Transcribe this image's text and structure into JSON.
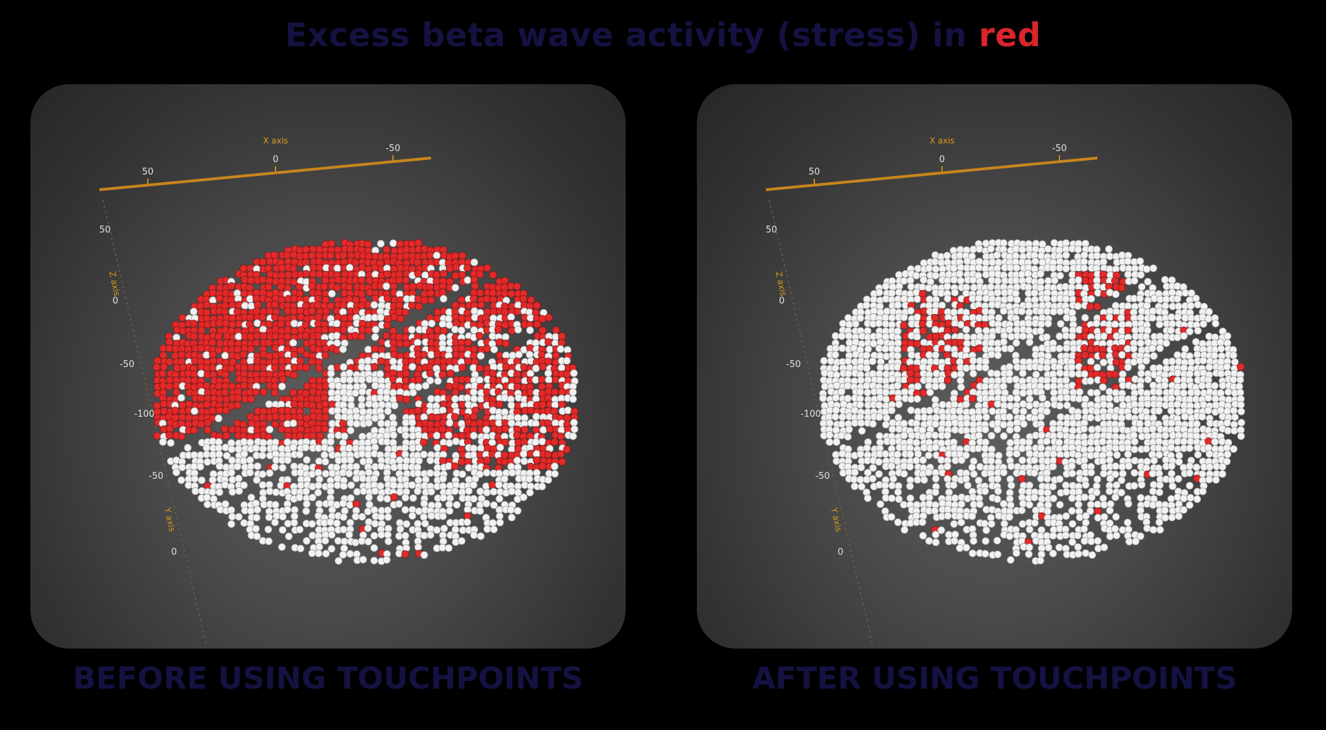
{
  "header": {
    "title_main": "Excess beta wave activity (stress) in ",
    "title_highlight": "red"
  },
  "colors": {
    "stress": "#e22a2a",
    "normal": "#f2f2f2",
    "title": "#141241",
    "axis": "#c8861c"
  },
  "chart_data": [
    {
      "type": "scatter",
      "caption": "BEFORE USING TOUCHPOINTS",
      "x_axis": {
        "label": "X axis",
        "ticks": [
          "50",
          "0",
          "-50"
        ]
      },
      "z_axis": {
        "label": "Z axis",
        "ticks": [
          "50",
          "0",
          "-50",
          "-100"
        ]
      },
      "y_axis": {
        "label": "Y axis",
        "ticks": [
          "-50",
          "0"
        ]
      },
      "series": [
        {
          "name": "red",
          "fraction_approx": 0.42
        },
        {
          "name": "white",
          "fraction_approx": 0.58
        }
      ],
      "stress_regions": "frontal-left, top crown and right-side band"
    },
    {
      "type": "scatter",
      "caption": "AFTER USING TOUCHPOINTS",
      "x_axis": {
        "label": "X axis",
        "ticks": [
          "50",
          "0",
          "-50"
        ]
      },
      "z_axis": {
        "label": "Z axis",
        "ticks": [
          "50",
          "0",
          "-50",
          "-100"
        ]
      },
      "y_axis": {
        "label": "Y axis",
        "ticks": [
          "-50",
          "0"
        ]
      },
      "series": [
        {
          "name": "red",
          "fraction_approx": 0.06
        },
        {
          "name": "white",
          "fraction_approx": 0.94
        }
      ],
      "stress_regions": "small patches left-center and upper-right"
    }
  ]
}
